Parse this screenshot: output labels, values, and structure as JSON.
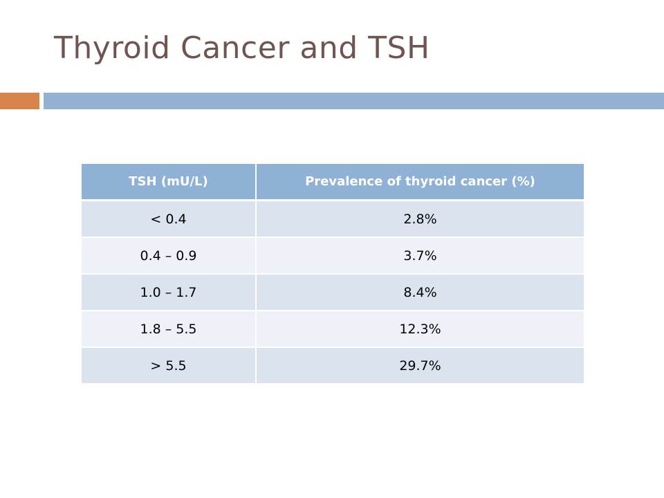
{
  "slide": {
    "title": "Thyroid Cancer and TSH"
  },
  "colors": {
    "title": "#6f5450",
    "accent_bar": "#d8834a",
    "rule_bar": "#93b2d3",
    "header_fill": "#8fb1d6",
    "row_fill_dark": "#dbe3ee",
    "row_fill_light": "#eef2f8"
  },
  "table": {
    "headers": [
      "TSH (mU/L)",
      "Prevalence of thyroid cancer (%)"
    ],
    "rows": [
      [
        "< 0.4",
        "2.8%"
      ],
      [
        "0.4 – 0.9",
        "3.7%"
      ],
      [
        "1.0 – 1.7",
        "8.4%"
      ],
      [
        "1.8 – 5.5",
        "12.3%"
      ],
      [
        "> 5.5",
        "29.7%"
      ]
    ]
  }
}
